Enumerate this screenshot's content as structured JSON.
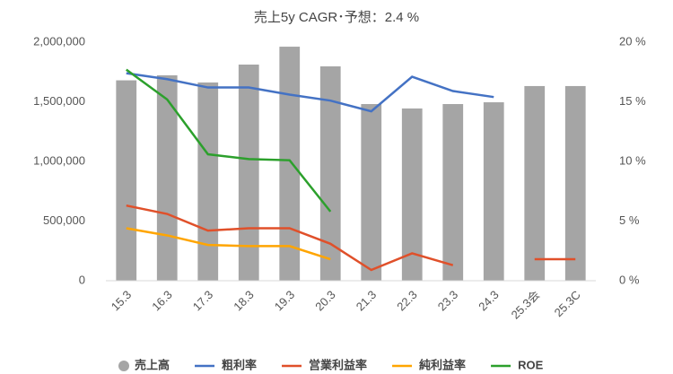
{
  "chart_data": {
    "type": "bar-line",
    "title": "売上5y CAGR･予想：2.4 %",
    "categories": [
      "15.3",
      "16.3",
      "17.3",
      "18.3",
      "19.3",
      "20.3",
      "21.3",
      "22.3",
      "23.3",
      "24.3",
      "25.3会",
      "25.3C"
    ],
    "series": [
      {
        "name": "売上高",
        "color": "#a5a5a5",
        "kind": "bar",
        "values": [
          1680000,
          1722000,
          1662000,
          1812000,
          1962000,
          1797000,
          1481000,
          1444000,
          1481000,
          1496000,
          1632000,
          1632000
        ]
      },
      {
        "name": "粗利率",
        "color": "#4472c4",
        "kind": "line",
        "axis": "y2",
        "values": [
          17.4,
          16.9,
          16.2,
          16.2,
          15.6,
          15.1,
          14.2,
          17.1,
          15.9,
          15.4,
          null,
          null
        ]
      },
      {
        "name": "営業利益率",
        "color": "#e0502a",
        "kind": "line",
        "axis": "y2",
        "values": [
          6.3,
          5.6,
          4.2,
          4.4,
          4.4,
          3.1,
          0.9,
          2.3,
          1.3,
          null,
          1.8,
          1.8
        ]
      },
      {
        "name": "純利益率",
        "color": "#ffa500",
        "kind": "line",
        "axis": "y2",
        "values": [
          4.4,
          3.8,
          3.0,
          2.9,
          2.9,
          1.8,
          null,
          null,
          null,
          null,
          null,
          null
        ]
      },
      {
        "name": "ROE",
        "color": "#2ca02c",
        "kind": "line",
        "axis": "y2",
        "values": [
          17.7,
          15.2,
          10.6,
          10.2,
          10.1,
          5.8,
          null,
          null,
          null,
          null,
          null,
          null
        ]
      }
    ],
    "ylim": [
      0,
      2000000
    ],
    "yticks": [
      0,
      {
        "value": 500000,
        "label": "500,000"
      },
      {
        "value": 1000000,
        "label": "1,000,000"
      },
      {
        "value": 1500000,
        "label": "1,500,000"
      },
      {
        "value": 2000000,
        "label": "2,000,000"
      }
    ],
    "y2lim": [
      0,
      20
    ],
    "y2ticks": [
      {
        "value": 0,
        "label": "0 %"
      },
      {
        "value": 5,
        "label": "5 %"
      },
      {
        "value": 10,
        "label": "10 %"
      },
      {
        "value": 15,
        "label": "15 %"
      },
      {
        "value": 20,
        "label": "20 %"
      }
    ],
    "grid": false,
    "legend": "bottom"
  }
}
